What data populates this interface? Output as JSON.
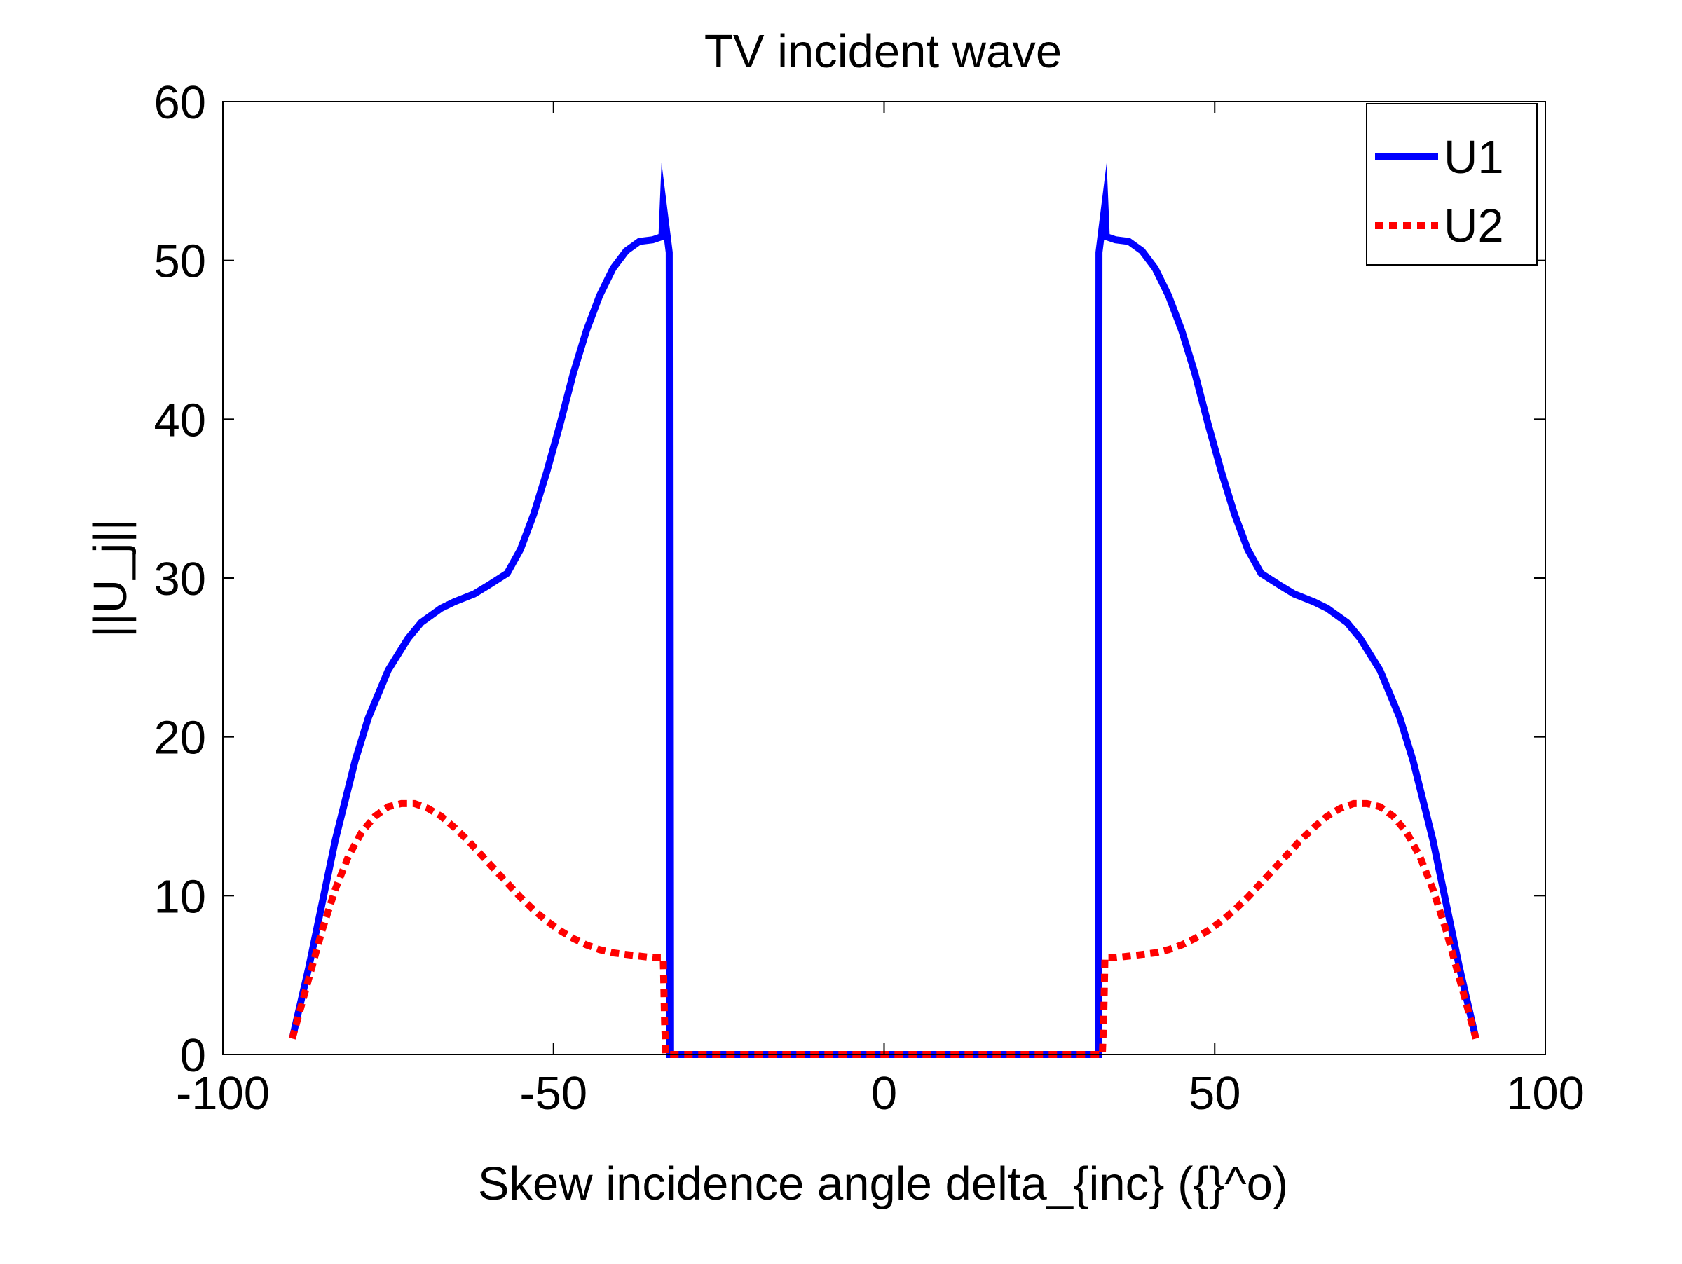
{
  "chart_data": {
    "type": "line",
    "title": "TV incident wave",
    "xlabel": "Skew incidence angle delta_{inc} ({}^o)",
    "ylabel": "||U_j||",
    "xlim": [
      -100,
      100
    ],
    "ylim": [
      0,
      60
    ],
    "xticks": [
      "-100",
      "-50",
      "0",
      "50",
      "100"
    ],
    "yticks": [
      "0",
      "10",
      "20",
      "30",
      "40",
      "50",
      "60"
    ],
    "grid": false,
    "legend_position": "top-right",
    "series": [
      {
        "name": "U1",
        "color": "#0000ff",
        "style": "solid",
        "x": [
          -89.5,
          -87,
          -85,
          -83,
          -80,
          -78,
          -75,
          -72,
          -70,
          -67,
          -65,
          -62,
          -60,
          -57,
          -55,
          -53,
          -51,
          -49,
          -47,
          -45,
          -43,
          -41,
          -39,
          -37,
          -35,
          -33.6,
          -33.4,
          -32.5,
          -32.4,
          0,
          32.4,
          32.5,
          33.4,
          33.6,
          35,
          37,
          39,
          41,
          43,
          45,
          47,
          49,
          51,
          53,
          55,
          57,
          60,
          62,
          65,
          67,
          70,
          72,
          75,
          78,
          80,
          83,
          85,
          87,
          89.5
        ],
        "y": [
          1.0,
          5.5,
          9.5,
          13.5,
          18.5,
          21.2,
          24.2,
          26.2,
          27.2,
          28.1,
          28.5,
          29.0,
          29.5,
          30.3,
          31.8,
          34.0,
          36.7,
          39.7,
          42.9,
          45.6,
          47.8,
          49.5,
          50.6,
          51.2,
          51.3,
          51.5,
          53.5,
          50.5,
          0.0,
          0.0,
          0.0,
          50.5,
          53.5,
          51.5,
          51.3,
          51.2,
          50.6,
          49.5,
          47.8,
          45.6,
          42.9,
          39.7,
          36.7,
          34.0,
          31.8,
          30.3,
          29.5,
          29.0,
          28.5,
          28.1,
          27.2,
          26.2,
          24.2,
          21.2,
          18.5,
          13.5,
          9.5,
          5.5,
          1.0
        ]
      },
      {
        "name": "U2",
        "color": "#ff0000",
        "style": "dotted",
        "x": [
          -89.5,
          -87,
          -85,
          -83,
          -81,
          -79,
          -77,
          -75,
          -73,
          -71,
          -69,
          -67,
          -65,
          -63,
          -61,
          -59,
          -57,
          -55,
          -53,
          -51,
          -49,
          -47,
          -45,
          -43,
          -41,
          -39,
          -37,
          -35,
          -33.4,
          -33.2,
          -33.0,
          0,
          33.0,
          33.2,
          33.4,
          35,
          37,
          39,
          41,
          43,
          45,
          47,
          49,
          51,
          53,
          55,
          57,
          59,
          61,
          63,
          65,
          67,
          69,
          71,
          73,
          75,
          77,
          79,
          81,
          83,
          85,
          87,
          89.5
        ],
        "y": [
          1.0,
          4.8,
          7.8,
          10.4,
          12.5,
          14.0,
          15.0,
          15.6,
          15.8,
          15.8,
          15.5,
          15.0,
          14.3,
          13.5,
          12.6,
          11.7,
          10.8,
          9.9,
          9.1,
          8.4,
          7.8,
          7.3,
          6.9,
          6.6,
          6.4,
          6.3,
          6.2,
          6.1,
          6.1,
          2.0,
          0.0,
          0.0,
          0.0,
          2.0,
          6.1,
          6.1,
          6.2,
          6.3,
          6.4,
          6.6,
          6.9,
          7.3,
          7.8,
          8.4,
          9.1,
          9.9,
          10.8,
          11.7,
          12.6,
          13.5,
          14.3,
          15.0,
          15.5,
          15.8,
          15.8,
          15.6,
          15.0,
          14.0,
          12.5,
          10.4,
          7.8,
          4.8,
          1.0
        ]
      }
    ]
  }
}
